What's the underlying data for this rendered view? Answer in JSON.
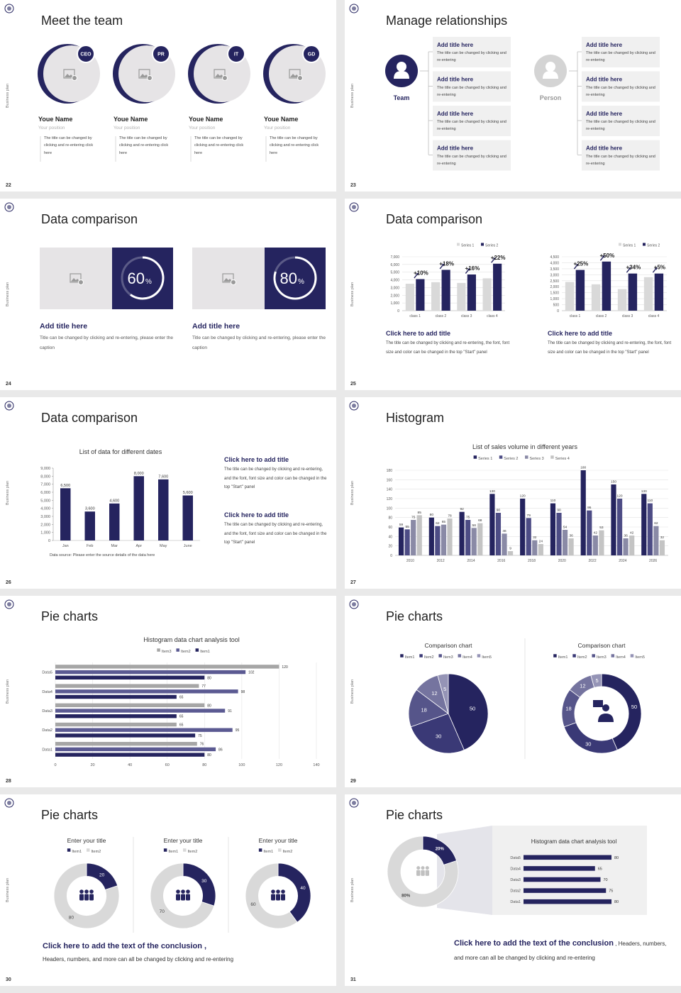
{
  "side_label": "Business plan",
  "slides": [
    {
      "number": 22,
      "title": "Meet the team",
      "members": [
        {
          "badge": "CEO",
          "name": "Youe Name",
          "position": "Your position",
          "text": "The title can be changed by clicking and re-entering click here"
        },
        {
          "badge": "PR",
          "name": "Youe Name",
          "position": "Your position",
          "text": "The title can be changed by clicking and re-entering click here"
        },
        {
          "badge": "IT",
          "name": "Youe Name",
          "position": "Your position",
          "text": "The title can be changed by clicking and re-entering click here"
        },
        {
          "badge": "GD",
          "name": "Youe Name",
          "position": "Your position",
          "text": "The title can be changed by clicking and re-entering click here"
        }
      ]
    },
    {
      "number": 23,
      "title": "Manage relationships",
      "team_label": "Team",
      "person_label": "Person",
      "left_items": [
        {
          "title": "Add title here",
          "text": "The title can be changed by clicking and re-entering"
        },
        {
          "title": "Add title here",
          "text": "The title can be changed by clicking and re-entering"
        },
        {
          "title": "Add title here",
          "text": "The title can be changed by clicking and re-entering"
        },
        {
          "title": "Add title here",
          "text": "The title can be changed by clicking and re-entering"
        }
      ],
      "right_items": [
        {
          "title": "Add title here",
          "text": "The title can be changed by clicking and re-entering"
        },
        {
          "title": "Add title here",
          "text": "The title can be changed by clicking and re-entering"
        },
        {
          "title": "Add title here",
          "text": "The title can be changed by clicking and re-entering"
        },
        {
          "title": "Add title here",
          "text": "The title can be changed by clicking and re-entering"
        }
      ]
    },
    {
      "number": 24,
      "title": "Data comparison",
      "cards": [
        {
          "percent": 60,
          "unit": "%",
          "title": "Add title here",
          "text": "Title can be changed by clicking and re-entering, please enter the caption"
        },
        {
          "percent": 80,
          "unit": "%",
          "title": "Add title here",
          "text": "Title can be changed by clicking and re-entering, please enter the caption"
        }
      ]
    },
    {
      "number": 25,
      "title": "Data comparison",
      "charts": [
        {
          "type": "bar",
          "categories": [
            "class 1",
            "class 2",
            "class 3",
            "class 4"
          ],
          "series": [
            {
              "name": "Series 1",
              "color": "#d9d9d9",
              "values": [
                3500,
                3700,
                3600,
                4200
              ]
            },
            {
              "name": "Series 2",
              "color": "#25245f",
              "values": [
                4100,
                5300,
                4700,
                6100
              ]
            }
          ],
          "annotations": [
            "+10%",
            "+18%",
            "+16%",
            "+22%"
          ],
          "ylim": [
            0,
            7000
          ],
          "yticks": [
            0,
            {
              "value": 1000,
              "label": "1,000"
            },
            {
              "value": 2000,
              "label": "2,000"
            },
            {
              "value": 3000,
              "label": "3,000"
            },
            {
              "value": 4000,
              "label": "4,000"
            },
            {
              "value": 5000,
              "label": "5,000"
            },
            {
              "value": 6000,
              "label": "6,000"
            },
            {
              "value": 7000,
              "label": "7,000"
            }
          ],
          "grid": true
        },
        {
          "type": "bar",
          "categories": [
            "class 1",
            "class 2",
            "class 3",
            "class 4"
          ],
          "series": [
            {
              "name": "Series 1",
              "color": "#d9d9d9",
              "values": [
                2400,
                2200,
                1800,
                2800
              ]
            },
            {
              "name": "Series 2",
              "color": "#25245f",
              "values": [
                3400,
                4100,
                3100,
                3100
              ]
            }
          ],
          "annotations": [
            "+25%",
            "+50%",
            "+34%",
            "+5%"
          ],
          "ylim": [
            0,
            4500
          ],
          "yticks": [
            0,
            500,
            {
              "value": 1000,
              "label": "1,000"
            },
            {
              "value": 1500,
              "label": "1,500"
            },
            {
              "value": 2000,
              "label": "2,000"
            },
            {
              "value": 2500,
              "label": "2,500"
            },
            {
              "value": 3000,
              "label": "3,000"
            },
            {
              "value": 3500,
              "label": "3,500"
            },
            {
              "value": 4000,
              "label": "4,000"
            },
            {
              "value": 4500,
              "label": "4,500"
            }
          ],
          "grid": true
        }
      ],
      "captions": [
        {
          "title": "Click here to add title",
          "text": "The title can be changed by clicking and re-entering, the font, font size and color can be changed in the top \"Start\" panel"
        },
        {
          "title": "Click here to add title",
          "text": "The title can be changed by clicking and re-entering, the font, font size and color can be changed in the top \"Start\" panel"
        }
      ]
    },
    {
      "number": 26,
      "title": "Data comparison",
      "chart": {
        "type": "bar",
        "title": "List of data for different dates",
        "categories": [
          "Jan",
          "Feb",
          "Mar",
          "Apr",
          "May",
          "June"
        ],
        "values": [
          6500,
          3600,
          4600,
          8000,
          7600,
          5600
        ],
        "value_labels": [
          "6,500",
          "3,600",
          "4,600",
          "8,000",
          "7,600",
          "5,600"
        ],
        "color": "#25245f",
        "ylim": [
          0,
          9000
        ],
        "yticks": [
          0,
          {
            "value": 1000,
            "label": "1,000"
          },
          {
            "value": 2000,
            "label": "2,000"
          },
          {
            "value": 3000,
            "label": "3,000"
          },
          {
            "value": 4000,
            "label": "4,000"
          },
          {
            "value": 5000,
            "label": "5,000"
          },
          {
            "value": 6000,
            "label": "6,000"
          },
          {
            "value": 7000,
            "label": "7,000"
          },
          {
            "value": 8000,
            "label": "8,000"
          },
          {
            "value": 9000,
            "label": "9,000"
          }
        ],
        "grid": false,
        "note": "Data source: Please enter the source details of the data here"
      },
      "blocks": [
        {
          "title": "Click here to add title",
          "text": "The title can be changed by clicking and re-entering, and the font, font size and color can be changed in the top \"Start\" panel"
        },
        {
          "title": "Click here to add title",
          "text": "The title can be changed by clicking and re-entering, and the font, font size and color can be changed in the top \"Start\" panel"
        }
      ]
    },
    {
      "number": 27,
      "title": "Histogram",
      "chart": {
        "type": "bar",
        "title": "List of sales volume in different years",
        "categories": [
          "2010",
          "2012",
          "2014",
          "2016",
          "2018",
          "2020",
          "2022",
          "2024",
          "2026"
        ],
        "series": [
          {
            "name": "Series 1",
            "color": "#25245f",
            "values": [
              59,
              80,
              92,
              130,
              120,
              110,
              180,
              150,
              130
            ]
          },
          {
            "name": "Series 2",
            "color": "#4d4c85",
            "values": [
              55,
              62,
              75,
              90,
              79,
              90,
              95,
              120,
              110
            ]
          },
          {
            "name": "Series 3",
            "color": "#8a8aa6",
            "values": [
              75,
              65,
              58,
              46,
              32,
              54,
              42,
              36,
              62
            ]
          },
          {
            "name": "Series 4",
            "color": "#c4c4c4",
            "values": [
              85,
              78,
              68,
              9,
              24,
              36,
              53,
              42,
              32
            ]
          }
        ],
        "ylim": [
          0,
          180
        ],
        "yticks": [
          0,
          20,
          40,
          60,
          80,
          100,
          120,
          140,
          160,
          180
        ],
        "grid": true
      }
    },
    {
      "number": 28,
      "title": "Pie charts",
      "chart": {
        "type": "barh",
        "title": "Histogram data chart analysis tool",
        "categories": [
          "Data1",
          "Data2",
          "Data3",
          "Data4",
          "Data5"
        ],
        "series": [
          {
            "name": "Item3",
            "color": "#a6a6a6",
            "values": [
              76,
              65,
              80,
              77,
              120
            ]
          },
          {
            "name": "Item2",
            "color": "#5b5a92",
            "values": [
              86,
              95,
              91,
              98,
              102
            ]
          },
          {
            "name": "Item1",
            "color": "#25245f",
            "values": [
              80,
              75,
              65,
              65,
              80
            ]
          }
        ],
        "xlim": [
          0,
          140
        ],
        "xticks": [
          0,
          20,
          40,
          60,
          80,
          100,
          120,
          140
        ],
        "grid": true
      }
    },
    {
      "number": 29,
      "title": "Pie charts",
      "charts": [
        {
          "type": "pie",
          "title": "Comparison chart",
          "categories": [
            "Item1",
            "Item2",
            "Item3",
            "Item4",
            "Item5"
          ],
          "values": [
            50,
            30,
            18,
            12,
            5
          ],
          "colors": [
            "#25245f",
            "#3a3976",
            "#56558a",
            "#75749f",
            "#9594b6"
          ]
        },
        {
          "type": "donut",
          "title": "Comparison chart",
          "categories": [
            "Item1",
            "Item2",
            "Item3",
            "Item4",
            "Item5"
          ],
          "values": [
            50,
            30,
            18,
            12,
            5
          ],
          "colors": [
            "#25245f",
            "#3a3976",
            "#56558a",
            "#75749f",
            "#9594b6"
          ]
        }
      ]
    },
    {
      "number": 30,
      "title": "Pie charts",
      "charts": [
        {
          "type": "donut",
          "title": "Enter your title",
          "categories": [
            "Item1",
            "Item2"
          ],
          "values": [
            20,
            80
          ],
          "colors": [
            "#25245f",
            "#d9d9d9"
          ]
        },
        {
          "type": "donut",
          "title": "Enter your title",
          "categories": [
            "Item1",
            "Item2"
          ],
          "values": [
            30,
            70
          ],
          "colors": [
            "#25245f",
            "#d9d9d9"
          ]
        },
        {
          "type": "donut",
          "title": "Enter your title",
          "categories": [
            "Item1",
            "Item2"
          ],
          "values": [
            40,
            60
          ],
          "colors": [
            "#25245f",
            "#d9d9d9"
          ]
        }
      ],
      "conclusion": {
        "title": "Click here to add the text of the conclusion ,",
        "text": "Headers, numbers, and more can all be changed by clicking and re-entering"
      }
    },
    {
      "number": 31,
      "title": "Pie charts",
      "donut": {
        "type": "donut",
        "values": [
          20,
          80
        ],
        "value_labels": [
          "20%",
          "80%"
        ],
        "colors": [
          "#25245f",
          "#d9d9d9"
        ]
      },
      "chart": {
        "type": "barh",
        "title": "Histogram data chart analysis tool",
        "categories": [
          "Data5",
          "Data4",
          "Data3",
          "Data2",
          "Data1"
        ],
        "values": [
          80,
          65,
          70,
          75,
          80
        ],
        "color": "#25245f"
      },
      "conclusion": {
        "title": "Click here to add the text of the conclusion",
        "text": ", Headers, numbers, and more can all be changed by clicking and re-entering"
      }
    }
  ]
}
